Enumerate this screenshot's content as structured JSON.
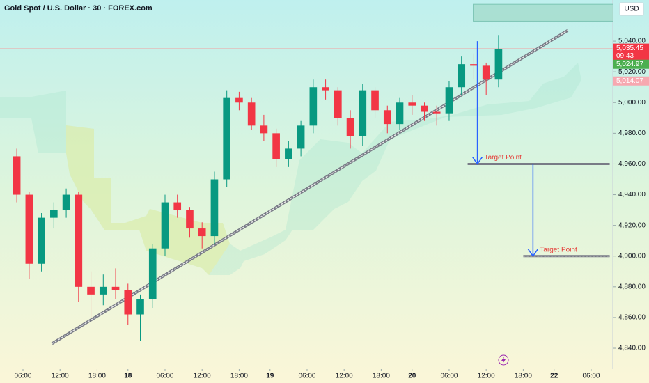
{
  "chart_data": {
    "type": "candlestick",
    "title": "Gold Spot / U.S. Dollar · 30 · FOREX.com",
    "currency": "USD",
    "up_color": "#089981",
    "down_color": "#f23645",
    "x": [
      4,
      6,
      8,
      10,
      12,
      14,
      16,
      18,
      20,
      22,
      24,
      26,
      28,
      30,
      32,
      34,
      36,
      38,
      40,
      42,
      44,
      46,
      48,
      50,
      52,
      54,
      56,
      58,
      60,
      62,
      64,
      66,
      68,
      70,
      72,
      74,
      76,
      78,
      80,
      82
    ],
    "open": [
      4965,
      4940,
      4895,
      4925,
      4930,
      4940,
      4880,
      4875,
      4880,
      4878,
      4862,
      4872,
      4905,
      4935,
      4930,
      4918,
      4913,
      4950,
      5003,
      5000,
      4985,
      4980,
      4963,
      4970,
      4985,
      5010,
      5008,
      4990,
      4978,
      5008,
      4995,
      4986,
      5000,
      4998,
      4994,
      4993,
      5010,
      5025,
      5024,
      5015
    ],
    "high": [
      4970,
      4942,
      4928,
      4935,
      4944,
      4942,
      4890,
      4888,
      4892,
      4882,
      4875,
      4908,
      4940,
      4940,
      4932,
      4922,
      4955,
      5008,
      5007,
      5003,
      4992,
      4983,
      4975,
      4988,
      5015,
      5015,
      5010,
      4995,
      5012,
      5010,
      4998,
      5003,
      5005,
      5000,
      4998,
      5014,
      5030,
      5032,
      5026,
      5044
    ],
    "low": [
      4935,
      4885,
      4890,
      4918,
      4925,
      4870,
      4860,
      4868,
      4872,
      4855,
      4845,
      4866,
      4900,
      4925,
      4912,
      4905,
      4908,
      4945,
      4995,
      4982,
      4975,
      4958,
      4958,
      4965,
      4980,
      5002,
      4985,
      4970,
      4972,
      4990,
      4980,
      4982,
      4992,
      4988,
      4985,
      4988,
      5005,
      5015,
      5005,
      5010
    ],
    "close": [
      4940,
      4895,
      4925,
      4930,
      4940,
      4880,
      4875,
      4880,
      4878,
      4862,
      4872,
      4905,
      4935,
      4930,
      4918,
      4913,
      4950,
      5003,
      5000,
      4985,
      4980,
      4963,
      4970,
      4985,
      5010,
      5008,
      4990,
      4978,
      5008,
      4995,
      4986,
      5000,
      4998,
      4994,
      4993,
      5010,
      5025,
      5024,
      5015,
      5035
    ],
    "xlim": [
      2.28,
      101.5
    ],
    "ylim": [
      4826.4,
      5066.8
    ],
    "xticks": [
      {
        "value": 6,
        "label": "06:00"
      },
      {
        "value": 12,
        "label": "12:00"
      },
      {
        "value": 18,
        "label": "18:00"
      },
      {
        "value": 23,
        "label": "18"
      },
      {
        "value": 29,
        "label": "06:00"
      },
      {
        "value": 35,
        "label": "12:00"
      },
      {
        "value": 41,
        "label": "18:00"
      },
      {
        "value": 46,
        "label": "19"
      },
      {
        "value": 52,
        "label": "06:00"
      },
      {
        "value": 58,
        "label": "12:00"
      },
      {
        "value": 64,
        "label": "18:00"
      },
      {
        "value": 69,
        "label": "20"
      },
      {
        "value": 75,
        "label": "06:00"
      },
      {
        "value": 81,
        "label": "12:00"
      },
      {
        "value": 87,
        "label": "18:00"
      },
      {
        "value": 92,
        "label": "22"
      },
      {
        "value": 98,
        "label": "06:00"
      }
    ],
    "yticks": [
      {
        "value": 4840,
        "label": "4,840.00"
      },
      {
        "value": 4860,
        "label": "4,860.00"
      },
      {
        "value": 4880,
        "label": "4,880.00"
      },
      {
        "value": 4900,
        "label": "4,900.00"
      },
      {
        "value": 4920,
        "label": "4,920.00"
      },
      {
        "value": 4940,
        "label": "4,940.00"
      },
      {
        "value": 4960,
        "label": "4,960.00"
      },
      {
        "value": 4980,
        "label": "4,980.00"
      },
      {
        "value": 5000,
        "label": "5,000.00"
      },
      {
        "value": 5020,
        "label": "5,020.00"
      },
      {
        "value": 5040,
        "label": "5,040.00"
      }
    ],
    "price_tags": [
      {
        "value": 5035.45,
        "label": "5,035.45",
        "sub": "09:43",
        "color": "#f23645"
      },
      {
        "value": 5024.97,
        "label": "5,024.97",
        "color": "#4caf50"
      },
      {
        "value": 5014.07,
        "label": "5,014.07",
        "color": "#f7a8b0"
      }
    ],
    "resistance_zone": [
      5053,
      5064,
      78.9,
      107.5
    ],
    "trendline": {
      "x": [
        10.7,
        94.2
      ],
      "y": [
        4843,
        5047
      ]
    },
    "targets": [
      {
        "label": "Target Point",
        "value": 4960,
        "x": [
          78,
          101
        ],
        "arrow_from": 5040
      },
      {
        "label": "Target Point",
        "value": 4900,
        "x": [
          87,
          101
        ],
        "arrow_from": 4960
      }
    ]
  }
}
